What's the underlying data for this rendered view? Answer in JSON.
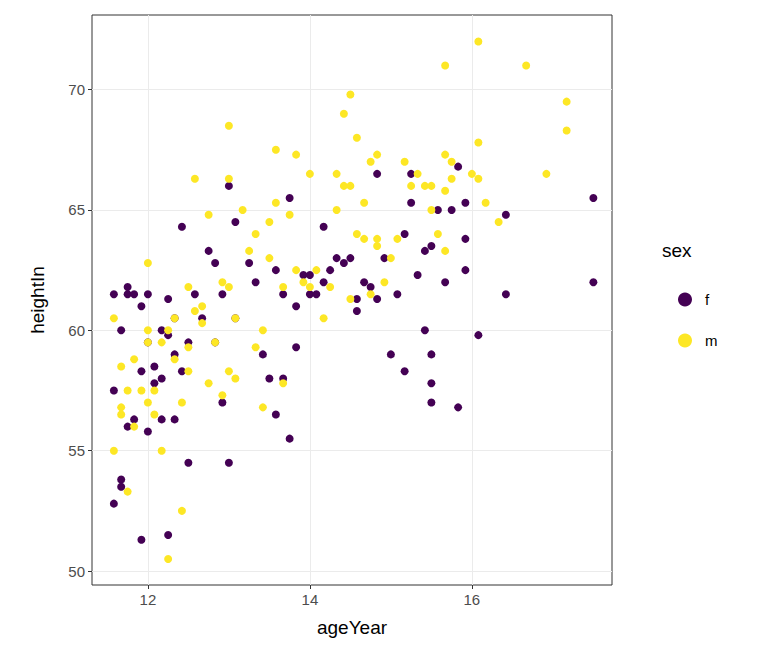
{
  "chart_data": {
    "type": "scatter",
    "x_label": "ageYear",
    "y_label": "heightIn",
    "legend_title": "sex",
    "xlim": [
      11.31,
      17.73
    ],
    "xticks": [
      12,
      14,
      16
    ],
    "ylim": [
      49.42,
      73.1
    ],
    "yticks": [
      50,
      55,
      60,
      65,
      70
    ],
    "grid": true,
    "legend": "right",
    "series": [
      {
        "name": "f",
        "color": "#440154",
        "marker": "circle",
        "x": [
          11.58,
          11.58,
          11.58,
          11.67,
          11.67,
          11.67,
          11.75,
          11.75,
          11.75,
          11.83,
          11.83,
          11.92,
          11.92,
          11.92,
          12,
          12,
          12,
          12.08,
          12.08,
          12.17,
          12.17,
          12.17,
          12.25,
          12.25,
          12.25,
          12.33,
          12.33,
          12.33,
          12.42,
          12.42,
          12.5,
          12.5,
          12.58,
          12.67,
          12.75,
          12.83,
          12.83,
          12.92,
          12.92,
          13,
          13,
          13.08,
          13.08,
          13.25,
          13.33,
          13.42,
          13.5,
          13.58,
          13.58,
          13.67,
          13.67,
          13.75,
          13.75,
          13.83,
          13.83,
          13.92,
          14,
          14,
          14.08,
          14.17,
          14.17,
          14.25,
          14.33,
          14.42,
          14.5,
          14.58,
          14.58,
          14.67,
          14.75,
          14.83,
          14.83,
          14.92,
          15,
          15.08,
          15.17,
          15.17,
          15.25,
          15.25,
          15.33,
          15.42,
          15.42,
          15.5,
          15.5,
          15.5,
          15.5,
          15.58,
          15.67,
          15.75,
          15.83,
          15.83,
          15.92,
          15.92,
          15.92,
          16.08,
          16.42,
          16.42,
          17.5,
          17.5
        ],
        "values": [
          61.5,
          57.5,
          52.8,
          53.8,
          53.5,
          60,
          61.8,
          61.5,
          56,
          61.5,
          56.3,
          51.3,
          58.3,
          61,
          55.8,
          59.5,
          61.5,
          57.8,
          58.5,
          60,
          56.3,
          58,
          51.5,
          59.8,
          61.3,
          60.5,
          56.3,
          59,
          64.3,
          58.3,
          54.5,
          59.5,
          61.5,
          60.5,
          63.3,
          62.8,
          59.5,
          61.5,
          57,
          66,
          54.5,
          60.5,
          64.5,
          62.8,
          62,
          59,
          58,
          56.5,
          62.5,
          58,
          61.5,
          55.5,
          65.5,
          59.3,
          61,
          62.3,
          61.5,
          62.3,
          61.5,
          64.3,
          62,
          62.5,
          63,
          62.8,
          63,
          60.8,
          61.3,
          62,
          61.8,
          66.5,
          61.3,
          63,
          59,
          61.5,
          58.3,
          64,
          65.3,
          66.5,
          62.3,
          60,
          63.3,
          59,
          63.5,
          57.8,
          57,
          65,
          62,
          65,
          66.8,
          56.8,
          62.5,
          63.8,
          65.3,
          59.8,
          64.8,
          61.5,
          65.5,
          62
        ]
      },
      {
        "name": "m",
        "color": "#FDE725",
        "marker": "circle",
        "x": [
          11.58,
          11.58,
          11.67,
          11.67,
          11.67,
          11.75,
          11.75,
          11.83,
          11.83,
          11.92,
          12,
          12,
          12,
          12,
          12.08,
          12.08,
          12.17,
          12.17,
          12.25,
          12.25,
          12.33,
          12.33,
          12.42,
          12.42,
          12.5,
          12.5,
          12.5,
          12.58,
          12.58,
          12.67,
          12.67,
          12.75,
          12.75,
          12.83,
          12.92,
          12.92,
          13,
          13,
          13,
          13,
          13.08,
          13.08,
          13.17,
          13.25,
          13.33,
          13.33,
          13.42,
          13.42,
          13.5,
          13.5,
          13.58,
          13.58,
          13.67,
          13.67,
          13.75,
          13.83,
          13.83,
          13.92,
          14,
          14,
          14.08,
          14.17,
          14.25,
          14.33,
          14.33,
          14.42,
          14.42,
          14.5,
          14.5,
          14.5,
          14.58,
          14.58,
          14.67,
          14.67,
          14.75,
          14.75,
          14.83,
          14.83,
          14.83,
          14.92,
          15,
          15.08,
          15.17,
          15.25,
          15.33,
          15.42,
          15.5,
          15.5,
          15.58,
          15.67,
          15.67,
          15.67,
          15.67,
          15.75,
          15.75,
          16,
          16.08,
          16.08,
          16.08,
          16.17,
          16.33,
          16.67,
          16.92,
          17.17,
          17.17
        ],
        "values": [
          60.5,
          55,
          56.8,
          56.5,
          58.5,
          53.3,
          57.5,
          58.8,
          56,
          57.5,
          62.8,
          60,
          59.5,
          57,
          56.5,
          57.5,
          55,
          59.5,
          50.5,
          60,
          60.5,
          58.8,
          52.5,
          57,
          61.8,
          59.3,
          58.3,
          66.3,
          60.8,
          61,
          60.3,
          64.8,
          57.8,
          59.5,
          62,
          57.3,
          68.5,
          66.3,
          61.8,
          58.3,
          58,
          60.5,
          65,
          63.3,
          59.3,
          64,
          56.8,
          60,
          64.5,
          63,
          67.5,
          65.3,
          57.8,
          61.8,
          64.8,
          67.3,
          62.5,
          62,
          66.5,
          61.8,
          62.5,
          60.5,
          61.8,
          66.5,
          65,
          69,
          66,
          69.8,
          66,
          61.3,
          64,
          68,
          63.8,
          65.3,
          61.5,
          67,
          63.5,
          67.3,
          63.8,
          62,
          63,
          63.8,
          67,
          66,
          66.5,
          66,
          66,
          65,
          64,
          71,
          67.3,
          65.8,
          63.3,
          67,
          66.3,
          66.5,
          72,
          67.8,
          66.3,
          65.3,
          64.5,
          71,
          66.5,
          69.5,
          68.3
        ]
      }
    ]
  }
}
